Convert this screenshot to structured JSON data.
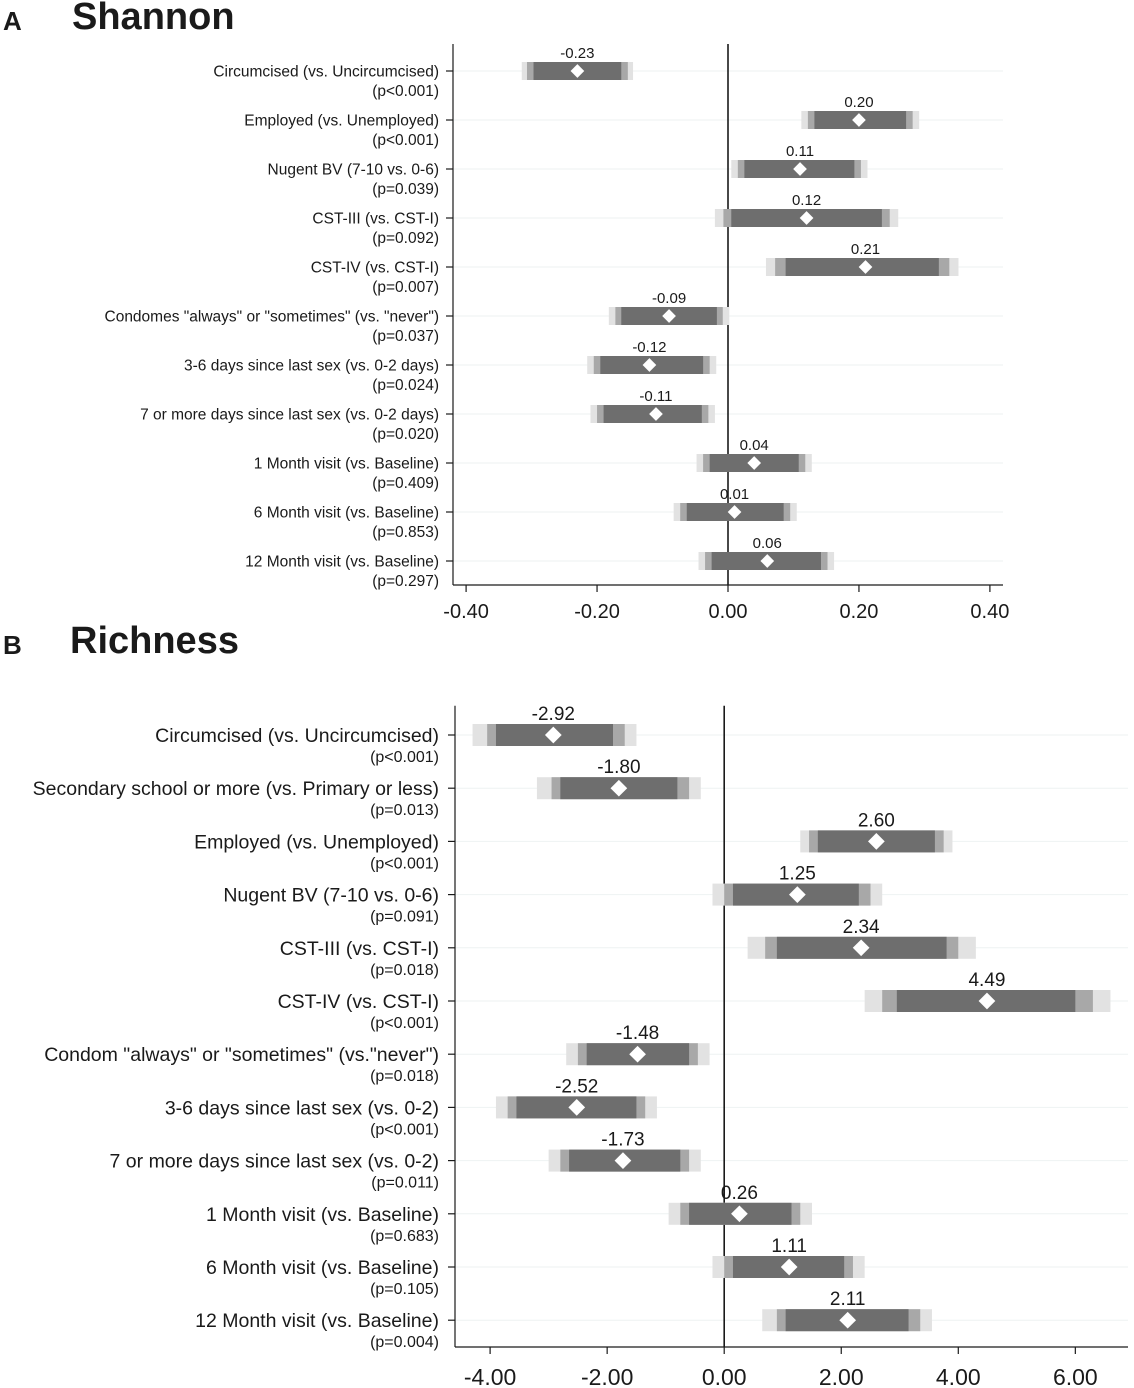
{
  "chart_data": [
    {
      "type": "forest",
      "panel_letter": "A",
      "title": "Shannon",
      "xlim": [
        -0.42,
        0.42
      ],
      "xticks": [
        -0.4,
        -0.2,
        0.0,
        0.2,
        0.4
      ],
      "xtick_labels": [
        "-0.40",
        "-0.20",
        "0.00",
        "0.20",
        "0.40"
      ],
      "rows": [
        {
          "label": "Circumcised (vs. Uncircumcised)",
          "p": "(p<0.001)",
          "value": -0.23,
          "value_label": "-0.23",
          "ci": [
            [
              -0.315,
              -0.145
            ],
            [
              -0.307,
              -0.153
            ],
            [
              -0.297,
              -0.163
            ]
          ]
        },
        {
          "label": "Employed (vs. Unemployed)",
          "p": "(p<0.001)",
          "value": 0.2,
          "value_label": "0.20",
          "ci": [
            [
              0.112,
              0.292
            ],
            [
              0.122,
              0.282
            ],
            [
              0.132,
              0.272
            ]
          ]
        },
        {
          "label": "Nugent BV (7-10 vs. 0-6)",
          "p": "(p=0.039)",
          "value": 0.11,
          "value_label": "0.11",
          "ci": [
            [
              0.005,
              0.213
            ],
            [
              0.015,
              0.203
            ],
            [
              0.025,
              0.193
            ]
          ]
        },
        {
          "label": "CST-III (vs. CST-I)",
          "p": "(p=0.092)",
          "value": 0.12,
          "value_label": "0.12",
          "ci": [
            [
              -0.02,
              0.26
            ],
            [
              -0.007,
              0.247
            ],
            [
              0.005,
              0.235
            ]
          ]
        },
        {
          "label": "CST-IV (vs. CST-I)",
          "p": "(p=0.007)",
          "value": 0.21,
          "value_label": "0.21",
          "ci": [
            [
              0.058,
              0.352
            ],
            [
              0.072,
              0.338
            ],
            [
              0.088,
              0.322
            ]
          ]
        },
        {
          "label": "Condomes \"always\" or \"sometimes\" (vs. \"never\")",
          "p": "(p=0.037)",
          "value": -0.09,
          "value_label": "-0.09",
          "ci": [
            [
              -0.182,
              0.002
            ],
            [
              -0.172,
              -0.008
            ],
            [
              -0.163,
              -0.017
            ]
          ]
        },
        {
          "label": "3-6 days since last sex (vs. 0-2 days)",
          "p": "(p=0.024)",
          "value": -0.12,
          "value_label": "-0.12",
          "ci": [
            [
              -0.215,
              -0.018
            ],
            [
              -0.205,
              -0.028
            ],
            [
              -0.195,
              -0.038
            ]
          ]
        },
        {
          "label": "7 or more days since last sex (vs. 0-2 days)",
          "p": "(p=0.020)",
          "value": -0.11,
          "value_label": "-0.11",
          "ci": [
            [
              -0.21,
              -0.02
            ],
            [
              -0.2,
              -0.03
            ],
            [
              -0.19,
              -0.04
            ]
          ]
        },
        {
          "label": "1 Month visit (vs. Baseline)",
          "p": "(p=0.409)",
          "value": 0.04,
          "value_label": "0.04",
          "ci": [
            [
              -0.048,
              0.128
            ],
            [
              -0.038,
              0.118
            ],
            [
              -0.028,
              0.108
            ]
          ]
        },
        {
          "label": "6 Month visit (vs. Baseline)",
          "p": "(p=0.853)",
          "value": 0.01,
          "value_label": "0.01",
          "ci": [
            [
              -0.083,
              0.105
            ],
            [
              -0.073,
              0.095
            ],
            [
              -0.063,
              0.085
            ]
          ]
        },
        {
          "label": "12 Month visit (vs. Baseline)",
          "p": "(p=0.297)",
          "value": 0.06,
          "value_label": "0.06",
          "ci": [
            [
              -0.045,
              0.162
            ],
            [
              -0.035,
              0.152
            ],
            [
              -0.025,
              0.142
            ]
          ]
        }
      ]
    },
    {
      "type": "forest",
      "panel_letter": "B",
      "title": "Richness",
      "xlim": [
        -4.6,
        6.9
      ],
      "xticks": [
        -4,
        -2,
        0,
        2,
        4,
        6
      ],
      "xtick_labels": [
        "-4.00",
        "-2.00",
        "0.00",
        "2.00",
        "4.00",
        "6.00"
      ],
      "rows": [
        {
          "label": "Circumcised (vs. Uncircumcised)",
          "p": "(p<0.001)",
          "value": -2.92,
          "value_label": "-2.92",
          "ci": [
            [
              -4.3,
              -1.5
            ],
            [
              -4.05,
              -1.7
            ],
            [
              -3.9,
              -1.9
            ]
          ]
        },
        {
          "label": "Secondary school or more (vs. Primary or less)",
          "p": "(p=0.013)",
          "value": -1.8,
          "value_label": "-1.80",
          "ci": [
            [
              -3.2,
              -0.4
            ],
            [
              -2.95,
              -0.6
            ],
            [
              -2.8,
              -0.8
            ]
          ]
        },
        {
          "label": "Employed (vs. Unemployed)",
          "p": "(p<0.001)",
          "value": 2.6,
          "value_label": "2.60",
          "ci": [
            [
              1.3,
              3.9
            ],
            [
              1.45,
              3.75
            ],
            [
              1.6,
              3.6
            ]
          ]
        },
        {
          "label": "Nugent BV (7-10 vs. 0-6)",
          "p": "(p=0.091)",
          "value": 1.25,
          "value_label": "1.25",
          "ci": [
            [
              -0.2,
              2.7
            ],
            [
              0.0,
              2.5
            ],
            [
              0.15,
              2.3
            ]
          ]
        },
        {
          "label": "CST-III (vs. CST-I)",
          "p": "(p=0.018)",
          "value": 2.34,
          "value_label": "2.34",
          "ci": [
            [
              0.4,
              4.3
            ],
            [
              0.7,
              4.0
            ],
            [
              0.9,
              3.8
            ]
          ]
        },
        {
          "label": "CST-IV (vs. CST-I)",
          "p": "(p<0.001)",
          "value": 4.49,
          "value_label": "4.49",
          "ci": [
            [
              2.4,
              6.6
            ],
            [
              2.7,
              6.3
            ],
            [
              2.95,
              6.0
            ]
          ]
        },
        {
          "label": "Condom \"always\" or \"sometimes\" (vs.\"never\")",
          "p": "(p=0.018)",
          "value": -1.48,
          "value_label": "-1.48",
          "ci": [
            [
              -2.7,
              -0.25
            ],
            [
              -2.5,
              -0.45
            ],
            [
              -2.35,
              -0.6
            ]
          ]
        },
        {
          "label": "3-6 days since last sex (vs. 0-2)",
          "p": "(p<0.001)",
          "value": -2.52,
          "value_label": "-2.52",
          "ci": [
            [
              -3.9,
              -1.15
            ],
            [
              -3.7,
              -1.35
            ],
            [
              -3.55,
              -1.5
            ]
          ]
        },
        {
          "label": "7 or more days since last sex (vs. 0-2)",
          "p": "(p=0.011)",
          "value": -1.73,
          "value_label": "-1.73",
          "ci": [
            [
              -3.0,
              -0.4
            ],
            [
              -2.8,
              -0.6
            ],
            [
              -2.65,
              -0.75
            ]
          ]
        },
        {
          "label": "1 Month visit (vs. Baseline)",
          "p": "(p=0.683)",
          "value": 0.26,
          "value_label": "0.26",
          "ci": [
            [
              -0.95,
              1.5
            ],
            [
              -0.75,
              1.3
            ],
            [
              -0.6,
              1.15
            ]
          ]
        },
        {
          "label": "6 Month visit (vs. Baseline)",
          "p": "(p=0.105)",
          "value": 1.11,
          "value_label": "1.11",
          "ci": [
            [
              -0.2,
              2.4
            ],
            [
              0.0,
              2.2
            ],
            [
              0.15,
              2.05
            ]
          ]
        },
        {
          "label": "12 Month visit (vs. Baseline)",
          "p": "(p=0.004)",
          "value": 2.11,
          "value_label": "2.11",
          "ci": [
            [
              0.65,
              3.55
            ],
            [
              0.9,
              3.35
            ],
            [
              1.05,
              3.15
            ]
          ]
        }
      ]
    }
  ],
  "colors": {
    "ci_outer": "#e2e2e2",
    "ci_mid": "#a8a8a8",
    "ci_inner": "#6e6e6e",
    "marker": "#ffffff",
    "axis": "#1a1a1a",
    "grid": "#eef2f2"
  }
}
